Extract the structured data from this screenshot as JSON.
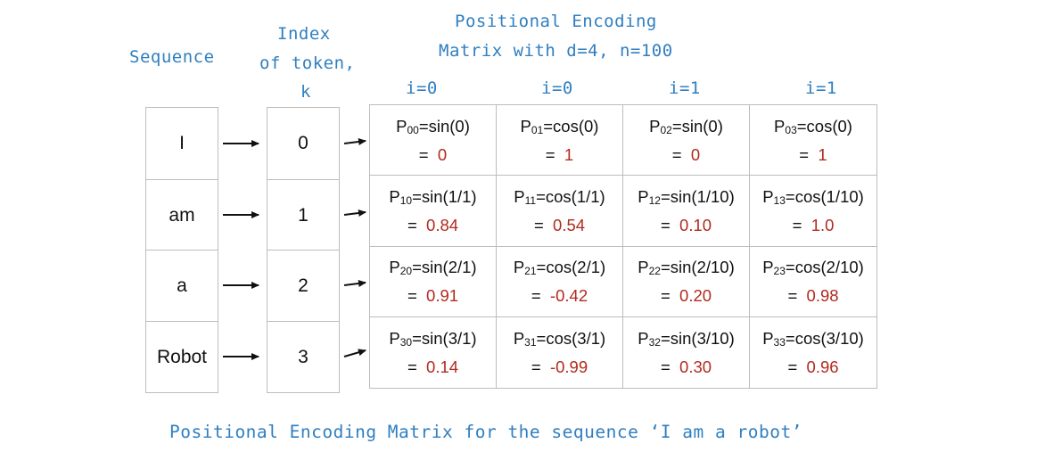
{
  "labels": {
    "sequence": "Sequence",
    "index_line1": "Index",
    "index_line2": "of token,",
    "index_line3": "k",
    "matrix_title_line1": "Positional Encoding",
    "matrix_title_line2": "Matrix with d=4, n=100",
    "caption": "Positional Encoding Matrix for the sequence ‘I am a robot’"
  },
  "i_labels": [
    "i=0",
    "i=0",
    "i=1",
    "i=1"
  ],
  "sequence": [
    "I",
    "am",
    "a",
    "Robot"
  ],
  "indices": [
    "0",
    "1",
    "2",
    "3"
  ],
  "matrix": [
    [
      {
        "sub": "00",
        "expr": "=sin(0)",
        "value": "0"
      },
      {
        "sub": "01",
        "expr": "=cos(0)",
        "value": "1"
      },
      {
        "sub": "02",
        "expr": "=sin(0)",
        "value": "0"
      },
      {
        "sub": "03",
        "expr": "=cos(0)",
        "value": "1"
      }
    ],
    [
      {
        "sub": "10",
        "expr": "=sin(1/1)",
        "value": "0.84"
      },
      {
        "sub": "11",
        "expr": "=cos(1/1)",
        "value": "0.54"
      },
      {
        "sub": "12",
        "expr": "=sin(1/10)",
        "value": "0.10"
      },
      {
        "sub": "13",
        "expr": "=cos(1/10)",
        "value": "1.0"
      }
    ],
    [
      {
        "sub": "20",
        "expr": "=sin(2/1)",
        "value": "0.91"
      },
      {
        "sub": "21",
        "expr": "=cos(2/1)",
        "value": "-0.42"
      },
      {
        "sub": "22",
        "expr": "=sin(2/10)",
        "value": "0.20"
      },
      {
        "sub": "23",
        "expr": "=cos(2/10)",
        "value": "0.98"
      }
    ],
    [
      {
        "sub": "30",
        "expr": "=sin(3/1)",
        "value": "0.14"
      },
      {
        "sub": "31",
        "expr": "=cos(3/1)",
        "value": "-0.99"
      },
      {
        "sub": "32",
        "expr": "=sin(3/10)",
        "value": "0.30"
      },
      {
        "sub": "33",
        "expr": "=cos(3/10)",
        "value": "0.96"
      }
    ]
  ],
  "colors": {
    "heading": "#2f7fc1",
    "value": "#b22a1e",
    "border": "#bdbdbd"
  }
}
